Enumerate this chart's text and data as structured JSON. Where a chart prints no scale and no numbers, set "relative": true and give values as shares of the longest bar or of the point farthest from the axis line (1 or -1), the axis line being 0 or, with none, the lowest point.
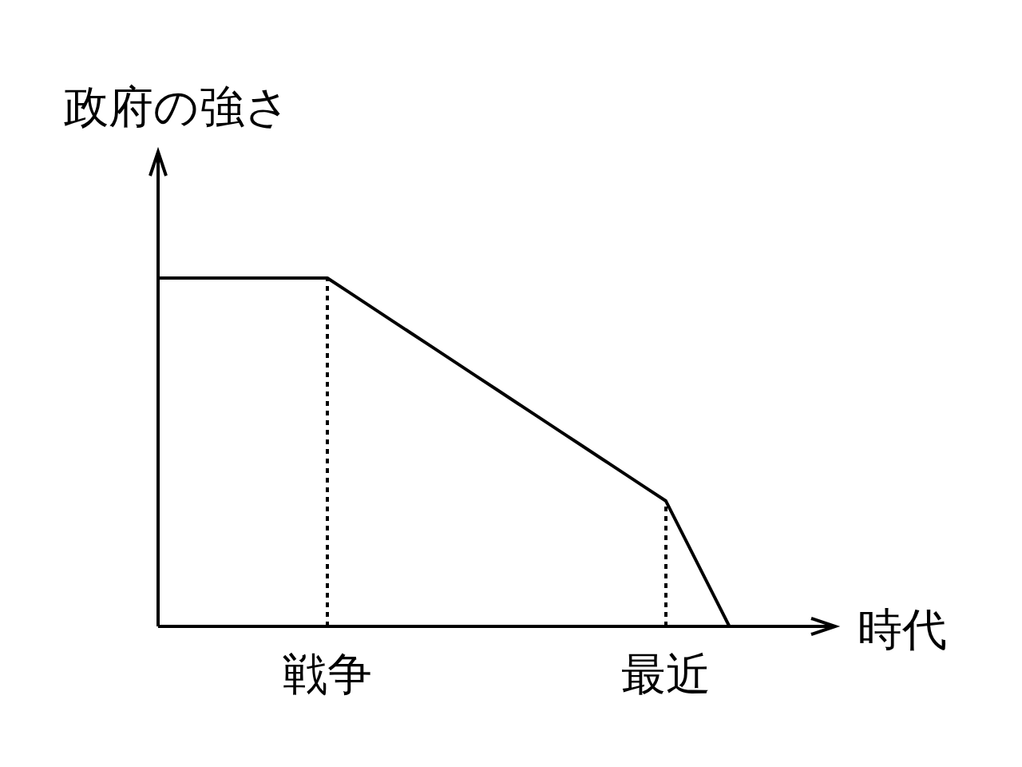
{
  "chart_data": {
    "type": "line",
    "relative": true,
    "xlabel": "時代",
    "ylabel": "政府の強さ",
    "categories": [
      null,
      null,
      null,
      null,
      null,
      null,
      null,
      null,
      "戦争",
      null,
      null,
      null,
      null,
      null,
      null,
      null,
      null,
      null,
      null,
      null,
      null,
      null,
      null,
      null,
      "最近",
      null,
      null,
      null
    ],
    "tick_labels": "x",
    "line_style": "solid",
    "series": [
      {
        "color": "#000000",
        "values": [
          1,
          1,
          1,
          1,
          1,
          1,
          1,
          1,
          1,
          0.96,
          0.92,
          0.88,
          0.84,
          0.8,
          0.76,
          0.72,
          0.68,
          0.64,
          0.6,
          0.56,
          0.52,
          0.48,
          0.44,
          0.4,
          0.36,
          0.24,
          0.12,
          0
        ]
      }
    ],
    "ref_lines": [
      {
        "axis": "x",
        "value": "戦争",
        "color": "#000000",
        "line_style": "dotted"
      },
      {
        "axis": "x",
        "value": "最近",
        "color": "#000000",
        "line_style": "dotted"
      }
    ]
  }
}
